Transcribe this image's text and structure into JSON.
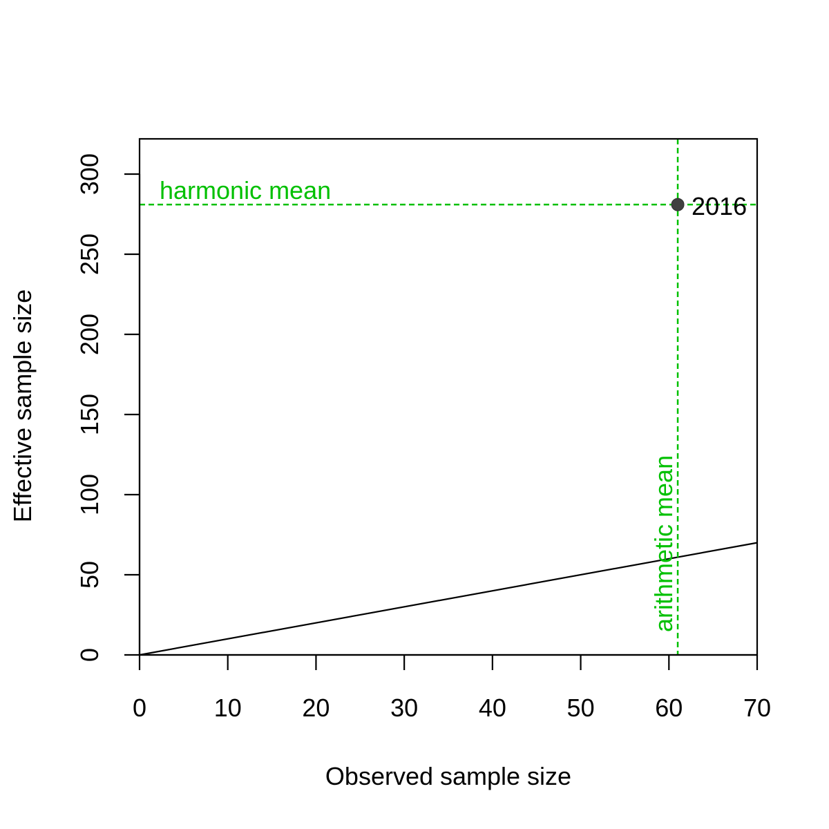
{
  "chart_data": {
    "type": "scatter",
    "xlabel": "Observed sample size",
    "ylabel": "Effective sample size",
    "xlim": [
      0,
      70
    ],
    "ylim": [
      0,
      322
    ],
    "x_ticks": [
      0,
      10,
      20,
      30,
      40,
      50,
      60,
      70
    ],
    "y_ticks": [
      0,
      50,
      100,
      150,
      200,
      250,
      300
    ],
    "grid": false,
    "points": [
      {
        "x": 61,
        "y": 281,
        "label": "2016"
      }
    ],
    "reference_line": {
      "from": [
        0,
        0
      ],
      "to": [
        70,
        70
      ]
    },
    "harmonic_mean": {
      "value": 281,
      "label": "harmonic mean"
    },
    "arithmetic_mean": {
      "value": 61,
      "label": "arithmetic mean"
    },
    "colors": {
      "annotation": "#00c000",
      "point": "#404040",
      "line": "#000000"
    }
  }
}
